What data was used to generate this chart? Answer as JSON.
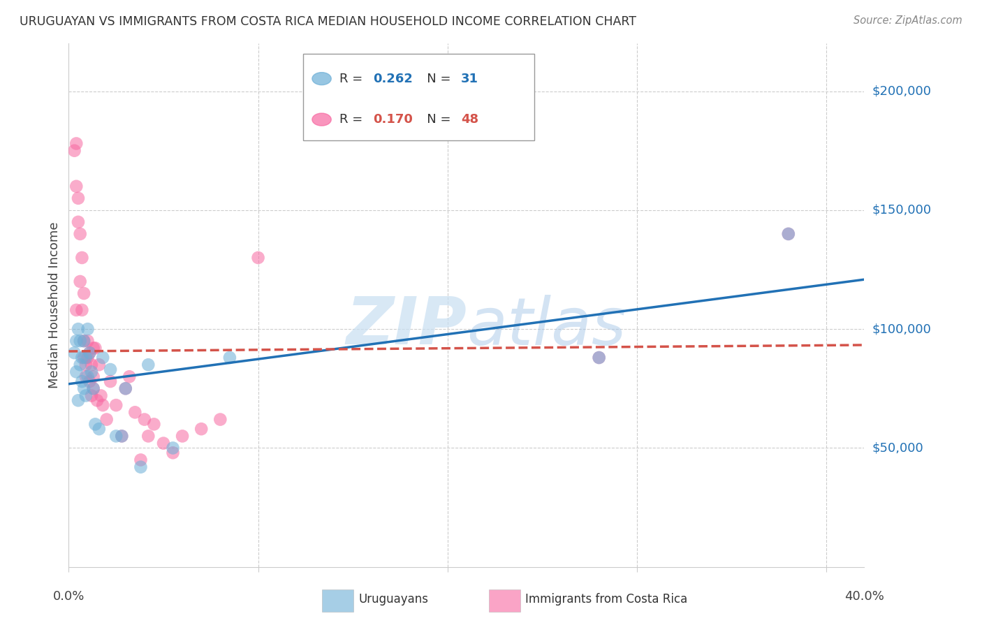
{
  "title": "URUGUAYAN VS IMMIGRANTS FROM COSTA RICA MEDIAN HOUSEHOLD INCOME CORRELATION CHART",
  "source": "Source: ZipAtlas.com",
  "ylabel": "Median Household Income",
  "ytick_labels": [
    "$50,000",
    "$100,000",
    "$150,000",
    "$200,000"
  ],
  "ytick_values": [
    50000,
    100000,
    150000,
    200000
  ],
  "ylim": [
    0,
    220000
  ],
  "xlim": [
    0.0,
    0.42
  ],
  "blue_color": "#6baed6",
  "pink_color": "#f768a1",
  "line_blue": "#2171b5",
  "line_pink": "#d4534a",
  "watermark_zip": "ZIP",
  "watermark_atlas": "atlas",
  "uruguayan_x": [
    0.003,
    0.004,
    0.004,
    0.005,
    0.005,
    0.006,
    0.006,
    0.007,
    0.007,
    0.008,
    0.008,
    0.009,
    0.009,
    0.01,
    0.01,
    0.011,
    0.012,
    0.013,
    0.014,
    0.016,
    0.018,
    0.022,
    0.025,
    0.028,
    0.038,
    0.28,
    0.38
  ],
  "uruguayan_y": [
    90000,
    80000,
    95000,
    70000,
    100000,
    85000,
    92000,
    78000,
    88000,
    95000,
    75000,
    88000,
    72000,
    90000,
    100000,
    83000,
    80000,
    72000,
    58000,
    55000,
    85000,
    80000,
    55000,
    52000,
    40000,
    88000,
    140000
  ],
  "costarica_x": [
    0.003,
    0.004,
    0.004,
    0.005,
    0.005,
    0.006,
    0.006,
    0.007,
    0.007,
    0.008,
    0.008,
    0.008,
    0.009,
    0.009,
    0.01,
    0.01,
    0.011,
    0.011,
    0.012,
    0.012,
    0.013,
    0.013,
    0.014,
    0.015,
    0.016,
    0.017,
    0.018,
    0.019,
    0.02,
    0.022,
    0.025,
    0.028,
    0.03,
    0.032,
    0.035,
    0.038,
    0.04,
    0.042,
    0.045,
    0.05,
    0.055,
    0.06,
    0.065,
    0.07,
    0.08,
    0.1,
    0.28,
    0.38
  ],
  "costarica_y": [
    175000,
    178000,
    160000,
    155000,
    145000,
    140000,
    120000,
    130000,
    108000,
    115000,
    95000,
    88000,
    85000,
    80000,
    95000,
    88000,
    90000,
    78000,
    85000,
    72000,
    80000,
    75000,
    92000,
    70000,
    85000,
    72000,
    68000,
    65000,
    62000,
    78000,
    68000,
    55000,
    75000,
    80000,
    65000,
    45000,
    62000,
    55000,
    60000,
    52000,
    48000,
    55000,
    60000,
    58000,
    62000,
    130000,
    88000,
    140000
  ]
}
